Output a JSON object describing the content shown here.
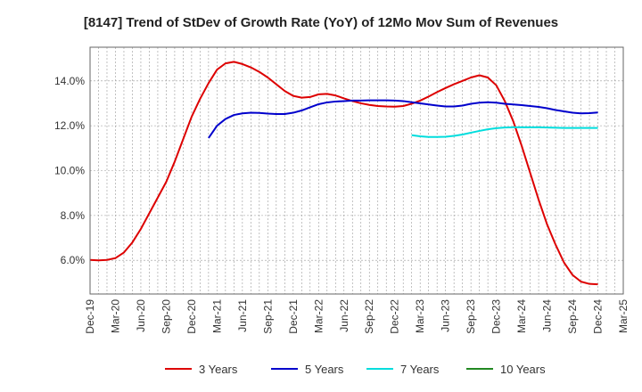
{
  "chart_data": {
    "type": "line",
    "title": "[8147]  Trend of StDev of Growth Rate (YoY) of 12Mo Mov Sum of Revenues",
    "xlabel": "",
    "ylabel": "",
    "x_ticks": [
      "Dec-19",
      "Mar-20",
      "Jun-20",
      "Sep-20",
      "Dec-20",
      "Mar-21",
      "Jun-21",
      "Sep-21",
      "Dec-21",
      "Mar-22",
      "Jun-22",
      "Sep-22",
      "Dec-22",
      "Mar-23",
      "Jun-23",
      "Sep-23",
      "Dec-23",
      "Mar-24",
      "Jun-24",
      "Sep-24",
      "Dec-24",
      "Mar-25"
    ],
    "y_ticks": [
      "6.0%",
      "8.0%",
      "10.0%",
      "12.0%",
      "14.0%"
    ],
    "y_tick_values": [
      6,
      8,
      10,
      12,
      14
    ],
    "ylim": [
      4.5,
      15.5
    ],
    "xlim": [
      0,
      63
    ],
    "grid": true,
    "legend_position": "bottom",
    "series": [
      {
        "name": "3 Years",
        "color": "#dd0000",
        "x": [
          0,
          1,
          2,
          3,
          4,
          5,
          6,
          7,
          8,
          9,
          10,
          11,
          12,
          13,
          14,
          15,
          16,
          17,
          18,
          19,
          20,
          21,
          22,
          23,
          24,
          25,
          26,
          27,
          28,
          29,
          30,
          31,
          32,
          33,
          34,
          35,
          36,
          37,
          38,
          39,
          40,
          41,
          42,
          43,
          44,
          45,
          46,
          47,
          48,
          49,
          50,
          51,
          52,
          53,
          54,
          55,
          56,
          57,
          58,
          59,
          60
        ],
        "values": [
          6.02,
          6.0,
          6.02,
          6.1,
          6.35,
          6.8,
          7.4,
          8.1,
          8.8,
          9.5,
          10.4,
          11.4,
          12.4,
          13.2,
          13.9,
          14.5,
          14.78,
          14.85,
          14.75,
          14.6,
          14.4,
          14.15,
          13.85,
          13.55,
          13.33,
          13.25,
          13.28,
          13.4,
          13.42,
          13.35,
          13.22,
          13.1,
          13.0,
          12.93,
          12.88,
          12.86,
          12.85,
          12.88,
          12.98,
          13.12,
          13.3,
          13.5,
          13.68,
          13.85,
          14.0,
          14.15,
          14.25,
          14.15,
          13.8,
          13.1,
          12.2,
          11.1,
          9.9,
          8.7,
          7.6,
          6.7,
          5.9,
          5.35,
          5.05,
          4.95,
          4.93
        ]
      },
      {
        "name": "5 Years",
        "color": "#0000cc",
        "x": [
          14,
          15,
          16,
          17,
          18,
          19,
          20,
          21,
          22,
          23,
          24,
          25,
          26,
          27,
          28,
          29,
          30,
          31,
          32,
          33,
          34,
          35,
          36,
          37,
          38,
          39,
          40,
          41,
          42,
          43,
          44,
          45,
          46,
          47,
          48,
          49,
          50,
          51,
          52,
          53,
          54,
          55,
          56,
          57,
          58,
          59,
          60
        ],
        "values": [
          11.45,
          12.0,
          12.3,
          12.48,
          12.55,
          12.58,
          12.57,
          12.54,
          12.52,
          12.52,
          12.58,
          12.68,
          12.82,
          12.96,
          13.04,
          13.08,
          13.1,
          13.12,
          13.12,
          13.13,
          13.13,
          13.13,
          13.12,
          13.1,
          13.05,
          13.0,
          12.95,
          12.9,
          12.86,
          12.86,
          12.9,
          12.98,
          13.03,
          13.05,
          13.03,
          12.98,
          12.95,
          12.92,
          12.88,
          12.84,
          12.78,
          12.7,
          12.64,
          12.58,
          12.55,
          12.56,
          12.59
        ]
      },
      {
        "name": "7 Years",
        "color": "#00dddd",
        "x": [
          38,
          39,
          40,
          41,
          42,
          43,
          44,
          45,
          46,
          47,
          48,
          49,
          50,
          51,
          52,
          53,
          54,
          55,
          56,
          57,
          58,
          59,
          60
        ],
        "values": [
          11.58,
          11.53,
          11.5,
          11.5,
          11.51,
          11.55,
          11.61,
          11.69,
          11.77,
          11.84,
          11.89,
          11.92,
          11.93,
          11.93,
          11.93,
          11.93,
          11.92,
          11.91,
          11.9,
          11.9,
          11.9,
          11.9,
          11.9
        ]
      },
      {
        "name": "10 Years",
        "color": "#228822",
        "x": [],
        "values": []
      }
    ]
  }
}
